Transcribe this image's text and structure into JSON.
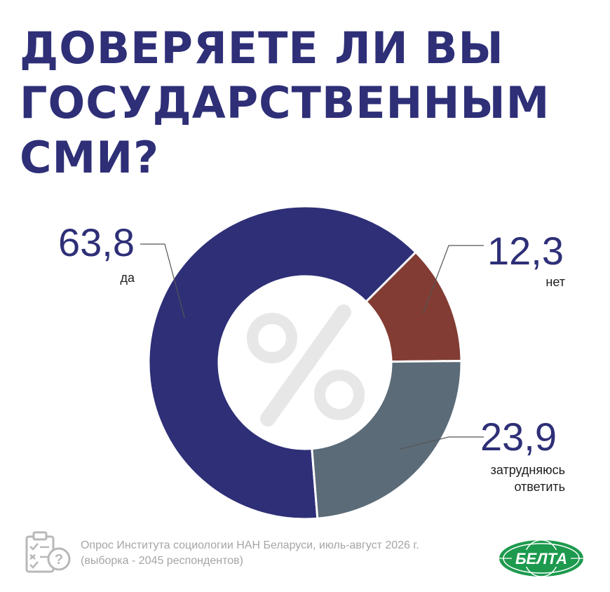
{
  "title": [
    "ДОВЕРЯЕТЕ ЛИ ВЫ",
    "ГОСУДАРСТВЕННЫМ",
    "СМИ?"
  ],
  "chart_data": {
    "type": "pie",
    "donut": true,
    "center_icon": "percent-icon",
    "unit": "%",
    "slices": [
      {
        "value": 63.8,
        "value_label": "63,8",
        "label": [
          "да"
        ],
        "color": "#2e2f77"
      },
      {
        "value": 12.3,
        "value_label": "12,3",
        "label": [
          "нет"
        ],
        "color": "#823c33"
      },
      {
        "value": 23.9,
        "value_label": "23,9",
        "label": [
          "затрудняюсь",
          "ответить"
        ],
        "color": "#5b6b78"
      }
    ]
  },
  "footer": {
    "icon": "clipboard-survey-icon",
    "lines": [
      "Опрос Института социологии НАН Беларуси, июль-август 2026 г.",
      "(выборка - 2045 респондентов)"
    ]
  },
  "logo": {
    "text": "БЕЛТА",
    "color": "#1d9a4e"
  }
}
